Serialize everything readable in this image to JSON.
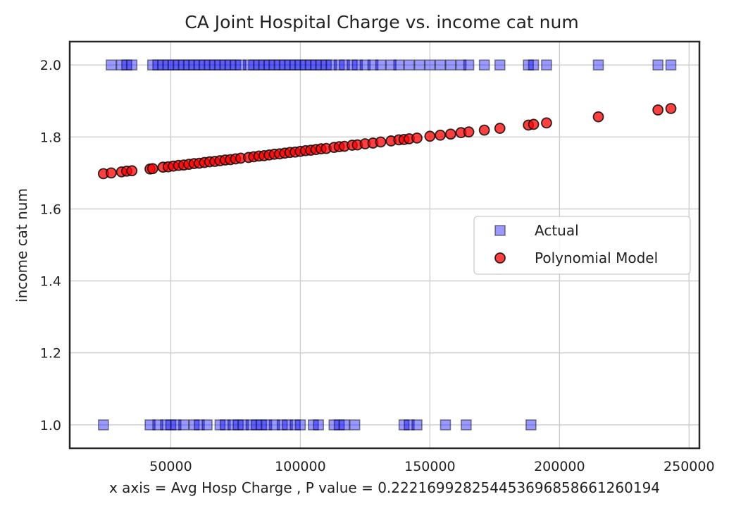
{
  "chart_data": {
    "type": "scatter",
    "title": "CA Joint Hospital Charge vs. income cat num",
    "xlabel": "x axis = Avg Hosp Charge , P value = 0.22216992825445369685866126019​4",
    "ylabel": "income cat num",
    "xlim": [
      11000,
      254000
    ],
    "ylim": [
      0.935,
      2.065
    ],
    "xticks": [
      50000,
      100000,
      150000,
      200000,
      250000
    ],
    "yticks": [
      1.0,
      1.2,
      1.4,
      1.6,
      1.8,
      2.0
    ],
    "xtick_labels": [
      "50000",
      "100000",
      "150000",
      "200000",
      "250000"
    ],
    "ytick_labels": [
      "1.0",
      "1.2",
      "1.4",
      "1.6",
      "1.8",
      "2.0"
    ],
    "grid": true,
    "legend_position": "center-right",
    "series": [
      {
        "name": "Actual",
        "marker": "square",
        "color": "#0000ff",
        "alpha": 0.4,
        "points": [
          [
            24000,
            1.0
          ],
          [
            42000,
            1.0
          ],
          [
            45000,
            1.0
          ],
          [
            48000,
            1.0
          ],
          [
            50000,
            1.0
          ],
          [
            52000,
            1.0
          ],
          [
            55000,
            1.0
          ],
          [
            59000,
            1.0
          ],
          [
            61000,
            1.0
          ],
          [
            64000,
            1.0
          ],
          [
            69000,
            1.0
          ],
          [
            71000,
            1.0
          ],
          [
            74000,
            1.0
          ],
          [
            76000,
            1.0
          ],
          [
            78000,
            1.0
          ],
          [
            81000,
            1.0
          ],
          [
            83000,
            1.0
          ],
          [
            85000,
            1.0
          ],
          [
            87000,
            1.0
          ],
          [
            90000,
            1.0
          ],
          [
            93000,
            1.0
          ],
          [
            95000,
            1.0
          ],
          [
            98000,
            1.0
          ],
          [
            100000,
            1.0
          ],
          [
            105000,
            1.0
          ],
          [
            107000,
            1.0
          ],
          [
            113000,
            1.0
          ],
          [
            115000,
            1.0
          ],
          [
            117000,
            1.0
          ],
          [
            121000,
            1.0
          ],
          [
            140000,
            1.0
          ],
          [
            142000,
            1.0
          ],
          [
            145000,
            1.0
          ],
          [
            156000,
            1.0
          ],
          [
            164000,
            1.0
          ],
          [
            189000,
            1.0
          ],
          [
            27000,
            2.0
          ],
          [
            31000,
            2.0
          ],
          [
            33000,
            2.0
          ],
          [
            35000,
            2.0
          ],
          [
            43000,
            2.0
          ],
          [
            45000,
            2.0
          ],
          [
            47000,
            2.0
          ],
          [
            49000,
            2.0
          ],
          [
            51000,
            2.0
          ],
          [
            53000,
            2.0
          ],
          [
            55000,
            2.0
          ],
          [
            57000,
            2.0
          ],
          [
            59000,
            2.0
          ],
          [
            61000,
            2.0
          ],
          [
            63000,
            2.0
          ],
          [
            65000,
            2.0
          ],
          [
            67000,
            2.0
          ],
          [
            69000,
            2.0
          ],
          [
            71000,
            2.0
          ],
          [
            73000,
            2.0
          ],
          [
            75000,
            2.0
          ],
          [
            77000,
            2.0
          ],
          [
            80000,
            2.0
          ],
          [
            82000,
            2.0
          ],
          [
            84000,
            2.0
          ],
          [
            86000,
            2.0
          ],
          [
            88000,
            2.0
          ],
          [
            90000,
            2.0
          ],
          [
            92000,
            2.0
          ],
          [
            94000,
            2.0
          ],
          [
            96000,
            2.0
          ],
          [
            98000,
            2.0
          ],
          [
            100000,
            2.0
          ],
          [
            102000,
            2.0
          ],
          [
            104000,
            2.0
          ],
          [
            106000,
            2.0
          ],
          [
            108000,
            2.0
          ],
          [
            110000,
            2.0
          ],
          [
            112000,
            2.0
          ],
          [
            115000,
            2.0
          ],
          [
            117000,
            2.0
          ],
          [
            120000,
            2.0
          ],
          [
            122000,
            2.0
          ],
          [
            125000,
            2.0
          ],
          [
            128000,
            2.0
          ],
          [
            131000,
            2.0
          ],
          [
            135000,
            2.0
          ],
          [
            138000,
            2.0
          ],
          [
            142000,
            2.0
          ],
          [
            146000,
            2.0
          ],
          [
            150000,
            2.0
          ],
          [
            154000,
            2.0
          ],
          [
            158000,
            2.0
          ],
          [
            162000,
            2.0
          ],
          [
            165000,
            2.0
          ],
          [
            171000,
            2.0
          ],
          [
            177000,
            2.0
          ],
          [
            188000,
            2.0
          ],
          [
            190000,
            2.0
          ],
          [
            195000,
            2.0
          ],
          [
            215000,
            2.0
          ],
          [
            238000,
            2.0
          ],
          [
            243000,
            2.0
          ]
        ]
      },
      {
        "name": "Polynomial Model",
        "marker": "circle",
        "color": "#ff0000",
        "alpha": 0.75,
        "points": [
          [
            24000,
            1.698
          ],
          [
            27000,
            1.7
          ],
          [
            31000,
            1.703
          ],
          [
            33000,
            1.705
          ],
          [
            35000,
            1.706
          ],
          [
            42000,
            1.711
          ],
          [
            43000,
            1.712
          ],
          [
            47000,
            1.716
          ],
          [
            49000,
            1.717
          ],
          [
            51000,
            1.719
          ],
          [
            53000,
            1.721
          ],
          [
            55000,
            1.722
          ],
          [
            57000,
            1.724
          ],
          [
            59000,
            1.726
          ],
          [
            61000,
            1.727
          ],
          [
            63000,
            1.729
          ],
          [
            65000,
            1.731
          ],
          [
            67000,
            1.732
          ],
          [
            69000,
            1.734
          ],
          [
            71000,
            1.736
          ],
          [
            73000,
            1.737
          ],
          [
            75000,
            1.739
          ],
          [
            77000,
            1.741
          ],
          [
            80000,
            1.743
          ],
          [
            82000,
            1.745
          ],
          [
            84000,
            1.747
          ],
          [
            86000,
            1.748
          ],
          [
            88000,
            1.75
          ],
          [
            90000,
            1.752
          ],
          [
            92000,
            1.753
          ],
          [
            94000,
            1.755
          ],
          [
            96000,
            1.757
          ],
          [
            98000,
            1.758
          ],
          [
            100000,
            1.76
          ],
          [
            102000,
            1.762
          ],
          [
            104000,
            1.763
          ],
          [
            106000,
            1.765
          ],
          [
            108000,
            1.767
          ],
          [
            110000,
            1.768
          ],
          [
            113000,
            1.771
          ],
          [
            115000,
            1.773
          ],
          [
            117000,
            1.774
          ],
          [
            120000,
            1.777
          ],
          [
            122000,
            1.778
          ],
          [
            125000,
            1.781
          ],
          [
            128000,
            1.783
          ],
          [
            131000,
            1.786
          ],
          [
            135000,
            1.789
          ],
          [
            138000,
            1.792
          ],
          [
            140000,
            1.793
          ],
          [
            142000,
            1.795
          ],
          [
            145000,
            1.797
          ],
          [
            150000,
            1.802
          ],
          [
            154000,
            1.805
          ],
          [
            158000,
            1.808
          ],
          [
            162000,
            1.812
          ],
          [
            165000,
            1.814
          ],
          [
            171000,
            1.819
          ],
          [
            177000,
            1.824
          ],
          [
            188000,
            1.833
          ],
          [
            190000,
            1.835
          ],
          [
            195000,
            1.839
          ],
          [
            215000,
            1.856
          ],
          [
            238000,
            1.875
          ],
          [
            243000,
            1.879
          ]
        ]
      }
    ]
  }
}
